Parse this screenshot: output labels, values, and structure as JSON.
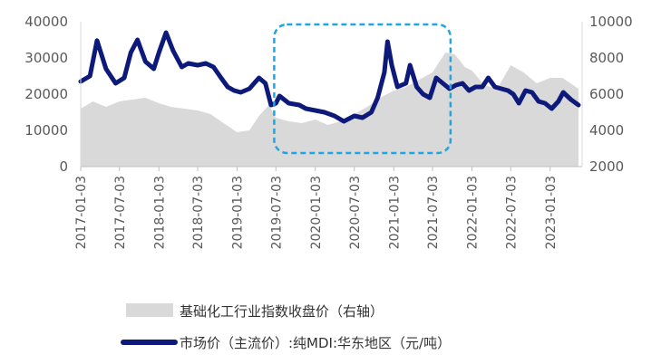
{
  "chart_data": {
    "type": "line",
    "title": "",
    "xlabel": "",
    "x_ticks": [
      "2017-01-03",
      "2017-07-03",
      "2018-01-03",
      "2018-07-03",
      "2019-01-03",
      "2019-07-03",
      "2020-01-03",
      "2020-07-03",
      "2021-01-03",
      "2021-07-03",
      "2022-01-03",
      "2022-07-03",
      "2023-01-03"
    ],
    "y_left": {
      "min": 0,
      "max": 40000,
      "ticks": [
        0,
        10000,
        20000,
        30000,
        40000
      ]
    },
    "y_right": {
      "min": 2000,
      "max": 10000,
      "ticks": [
        2000,
        4000,
        6000,
        8000,
        10000
      ]
    },
    "series": [
      {
        "name": "基础化工行业指数收盘价（右轴）",
        "kind": "area",
        "axis": "right",
        "color": "#d9d9d9",
        "points": [
          [
            "2017-01-03",
            5200
          ],
          [
            "2017-03-01",
            5600
          ],
          [
            "2017-05-01",
            5300
          ],
          [
            "2017-07-03",
            5600
          ],
          [
            "2017-09-01",
            5700
          ],
          [
            "2017-11-01",
            5800
          ],
          [
            "2018-01-03",
            5500
          ],
          [
            "2018-03-01",
            5300
          ],
          [
            "2018-05-01",
            5200
          ],
          [
            "2018-07-03",
            5100
          ],
          [
            "2018-09-01",
            4900
          ],
          [
            "2018-11-01",
            4400
          ],
          [
            "2019-01-03",
            3900
          ],
          [
            "2019-03-01",
            4000
          ],
          [
            "2019-04-15",
            4800
          ],
          [
            "2019-06-01",
            5400
          ],
          [
            "2019-07-03",
            4700
          ],
          [
            "2019-09-01",
            4500
          ],
          [
            "2019-11-01",
            4400
          ],
          [
            "2020-01-03",
            4600
          ],
          [
            "2020-03-01",
            4300
          ],
          [
            "2020-05-01",
            4500
          ],
          [
            "2020-07-03",
            4900
          ],
          [
            "2020-09-01",
            5300
          ],
          [
            "2020-11-01",
            5800
          ],
          [
            "2021-01-03",
            6200
          ],
          [
            "2021-03-01",
            6400
          ],
          [
            "2021-05-01",
            6800
          ],
          [
            "2021-07-03",
            7200
          ],
          [
            "2021-09-01",
            8300
          ],
          [
            "2021-10-15",
            8200
          ],
          [
            "2021-12-01",
            7500
          ],
          [
            "2022-01-03",
            7300
          ],
          [
            "2022-03-01",
            6500
          ],
          [
            "2022-05-01",
            6300
          ],
          [
            "2022-07-03",
            7600
          ],
          [
            "2022-09-01",
            7200
          ],
          [
            "2022-11-01",
            6600
          ],
          [
            "2023-01-03",
            6900
          ],
          [
            "2023-03-01",
            6900
          ],
          [
            "2023-05-15",
            6300
          ]
        ]
      },
      {
        "name": "市场价（主流价）:纯MDI:华东地区（元/吨）",
        "kind": "line",
        "axis": "left",
        "color": "#0d1a7a",
        "points": [
          [
            "2017-01-03",
            23500
          ],
          [
            "2017-02-15",
            25000
          ],
          [
            "2017-03-20",
            34800
          ],
          [
            "2017-05-01",
            27000
          ],
          [
            "2017-06-15",
            23000
          ],
          [
            "2017-07-25",
            24500
          ],
          [
            "2017-08-25",
            31500
          ],
          [
            "2017-09-25",
            35000
          ],
          [
            "2017-11-01",
            29000
          ],
          [
            "2017-12-10",
            27000
          ],
          [
            "2018-01-03",
            31500
          ],
          [
            "2018-02-05",
            37000
          ],
          [
            "2018-03-10",
            32000
          ],
          [
            "2018-04-20",
            27500
          ],
          [
            "2018-05-20",
            28500
          ],
          [
            "2018-07-03",
            28000
          ],
          [
            "2018-08-10",
            28500
          ],
          [
            "2018-09-15",
            27500
          ],
          [
            "2018-10-20",
            24500
          ],
          [
            "2018-11-20",
            22000
          ],
          [
            "2018-12-20",
            21000
          ],
          [
            "2019-01-20",
            20500
          ],
          [
            "2019-03-01",
            21500
          ],
          [
            "2019-04-15",
            24500
          ],
          [
            "2019-05-15",
            23000
          ],
          [
            "2019-06-10",
            17000
          ],
          [
            "2019-07-03",
            17500
          ],
          [
            "2019-07-20",
            19500
          ],
          [
            "2019-09-01",
            17500
          ],
          [
            "2019-10-20",
            17000
          ],
          [
            "2019-11-20",
            16000
          ],
          [
            "2020-01-03",
            15500
          ],
          [
            "2020-02-15",
            15000
          ],
          [
            "2020-04-01",
            14000
          ],
          [
            "2020-05-15",
            12500
          ],
          [
            "2020-07-03",
            14000
          ],
          [
            "2020-08-10",
            13500
          ],
          [
            "2020-09-20",
            15000
          ],
          [
            "2020-10-20",
            19000
          ],
          [
            "2020-11-20",
            26000
          ],
          [
            "2020-12-05",
            34500
          ],
          [
            "2020-12-25",
            28000
          ],
          [
            "2021-01-20",
            22000
          ],
          [
            "2021-03-01",
            23000
          ],
          [
            "2021-03-20",
            28000
          ],
          [
            "2021-04-20",
            22000
          ],
          [
            "2021-05-20",
            20000
          ],
          [
            "2021-06-20",
            19000
          ],
          [
            "2021-07-20",
            24500
          ],
          [
            "2021-08-20",
            23000
          ],
          [
            "2021-09-20",
            21500
          ],
          [
            "2021-10-20",
            22500
          ],
          [
            "2021-11-20",
            23000
          ],
          [
            "2021-12-20",
            21000
          ],
          [
            "2022-01-20",
            22000
          ],
          [
            "2022-02-20",
            22000
          ],
          [
            "2022-03-20",
            24500
          ],
          [
            "2022-04-20",
            22000
          ],
          [
            "2022-05-20",
            21500
          ],
          [
            "2022-06-20",
            21000
          ],
          [
            "2022-07-15",
            20000
          ],
          [
            "2022-08-10",
            17500
          ],
          [
            "2022-09-10",
            21000
          ],
          [
            "2022-10-10",
            20500
          ],
          [
            "2022-11-10",
            18000
          ],
          [
            "2022-12-10",
            17500
          ],
          [
            "2023-01-10",
            16000
          ],
          [
            "2023-02-10",
            18000
          ],
          [
            "2023-03-05",
            20500
          ],
          [
            "2023-04-10",
            18500
          ],
          [
            "2023-05-15",
            17000
          ]
        ]
      }
    ],
    "annotation": {
      "type": "dashed-rounded-box",
      "color": "#1fa6e0",
      "x_from": "2019-06-25",
      "x_to": "2021-09-25"
    },
    "legend_position": "bottom",
    "grid": false
  }
}
